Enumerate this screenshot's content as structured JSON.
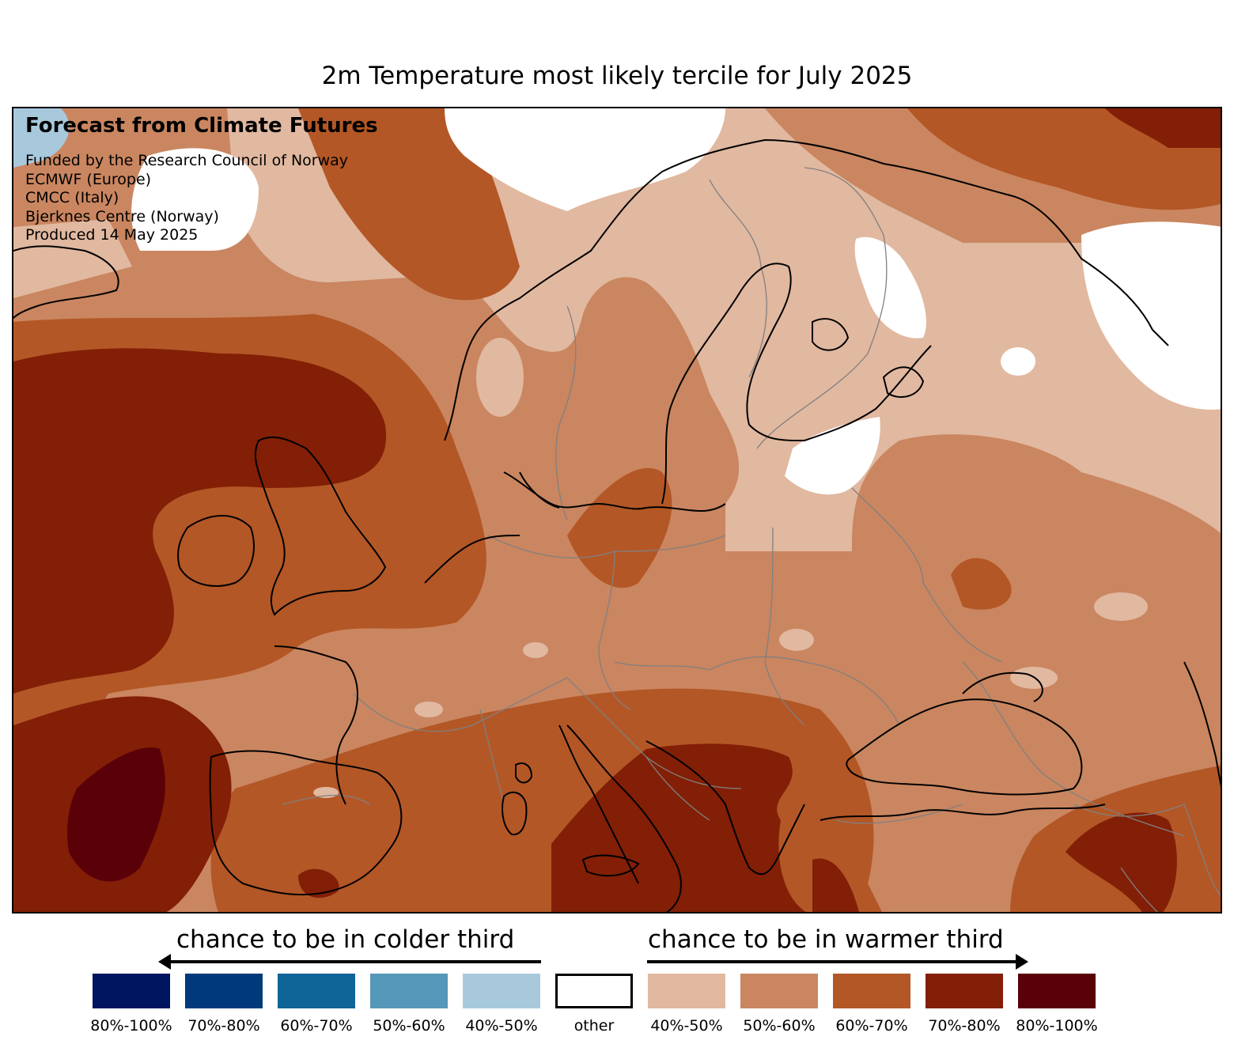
{
  "title": "2m Temperature most likely tercile for July 2025",
  "credits": {
    "heading": "Forecast from Climate Futures",
    "lines": [
      "Funded by the Research Council of Norway",
      "ECMWF (Europe)",
      "CMCC (Italy)",
      "Bjerknes Centre (Norway)",
      "Produced 14 May 2025"
    ]
  },
  "legend": {
    "colder_caption": "chance to be in colder third",
    "warmer_caption": "chance to be in warmer third",
    "colder": [
      {
        "label": "80%-100%",
        "color": "#001560"
      },
      {
        "label": "70%-80%",
        "color": "#003a7b"
      },
      {
        "label": "60%-70%",
        "color": "#0f6498"
      },
      {
        "label": "50%-60%",
        "color": "#5497b8"
      },
      {
        "label": "40%-50%",
        "color": "#a8c9dc"
      }
    ],
    "other": {
      "label": "other",
      "color": "#ffffff"
    },
    "warmer": [
      {
        "label": "40%-50%",
        "color": "#e1b8a0"
      },
      {
        "label": "50%-60%",
        "color": "#ca8660"
      },
      {
        "label": "60%-70%",
        "color": "#b35726"
      },
      {
        "label": "70%-80%",
        "color": "#821f06"
      },
      {
        "label": "80%-100%",
        "color": "#5a0008"
      }
    ]
  },
  "map": {
    "region": "Europe",
    "coastline_color": "#000000",
    "border_color": "#808080"
  }
}
